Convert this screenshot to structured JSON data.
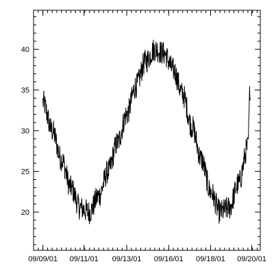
{
  "chart_data": {
    "type": "line",
    "title": "",
    "xlabel": "",
    "ylabel": "",
    "x_range": [
      "2001-09-08 12:00",
      "2001-09-20 16:00"
    ],
    "ylim": [
      15.3,
      44.8
    ],
    "grid": false,
    "legend": "none",
    "colors": {
      "line": "#000000",
      "axes": "#000000",
      "background": "#ffffff"
    },
    "x_ticks": [
      {
        "x": "2001-09-09 00:00",
        "label": "09/09/01"
      },
      {
        "x": "2001-09-11 05:00",
        "label": "09/11/01"
      },
      {
        "x": "2001-09-13 12:00",
        "label": "09/13/01"
      },
      {
        "x": "2001-09-15 18:00",
        "label": "09/16/01"
      },
      {
        "x": "2001-09-18 00:00",
        "label": "09/18/01"
      },
      {
        "x": "2001-09-20 05:00",
        "label": "09/20/01"
      }
    ],
    "y_ticks": [
      {
        "value": 20,
        "label": "20"
      },
      {
        "value": 25,
        "label": "25"
      },
      {
        "value": 30,
        "label": "30"
      },
      {
        "value": 35,
        "label": "35"
      },
      {
        "value": 40,
        "label": "40"
      }
    ],
    "series": [
      {
        "x": [
          "2001-09-09 00:00",
          "2001-09-09 12:00",
          "2001-09-10 00:00",
          "2001-09-10 12:00",
          "2001-09-11 00:00",
          "2001-09-11 12:00",
          "2001-09-12 00:00",
          "2001-09-12 12:00",
          "2001-09-13 00:00",
          "2001-09-13 12:00",
          "2001-09-14 00:00",
          "2001-09-14 12:00",
          "2001-09-15 00:00",
          "2001-09-15 12:00",
          "2001-09-16 00:00",
          "2001-09-16 12:00",
          "2001-09-17 00:00",
          "2001-09-17 12:00",
          "2001-09-18 00:00",
          "2001-09-18 12:00",
          "2001-09-19 00:00",
          "2001-09-19 12:00",
          "2001-09-20 00:00",
          "2001-09-20 03:00"
        ],
        "y": [
          33.5,
          30.0,
          26.5,
          23.0,
          20.5,
          20.0,
          22.0,
          25.0,
          28.5,
          32.0,
          35.5,
          38.5,
          40.0,
          39.5,
          37.5,
          34.5,
          30.5,
          26.5,
          22.5,
          20.0,
          20.5,
          23.5,
          28.0,
          35.5
        ],
        "noise_amplitude": 1.5
      }
    ]
  }
}
